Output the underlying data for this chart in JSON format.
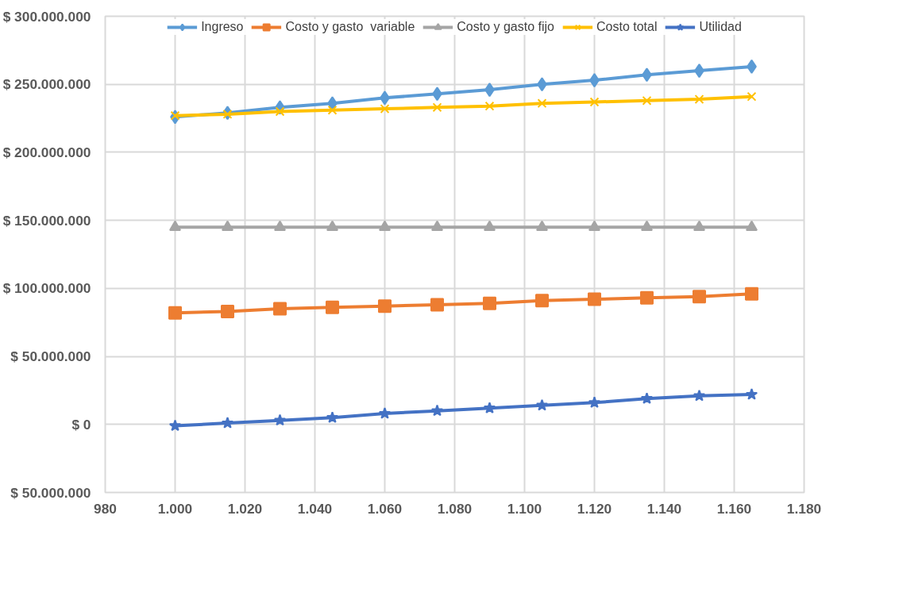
{
  "chart_data": {
    "type": "line",
    "x": [
      1000,
      1015,
      1030,
      1045,
      1060,
      1075,
      1090,
      1105,
      1120,
      1135,
      1150,
      1165
    ],
    "xlim": [
      980,
      1180
    ],
    "xticks": [
      {
        "value": 980,
        "label": "980"
      },
      {
        "value": 1000,
        "label": "1.000"
      },
      {
        "value": 1020,
        "label": "1.020"
      },
      {
        "value": 1040,
        "label": "1.040"
      },
      {
        "value": 1060,
        "label": "1.060"
      },
      {
        "value": 1080,
        "label": "1.080"
      },
      {
        "value": 1100,
        "label": "1.100"
      },
      {
        "value": 1120,
        "label": "1.120"
      },
      {
        "value": 1140,
        "label": "1.140"
      },
      {
        "value": 1160,
        "label": "1.160"
      },
      {
        "value": 1180,
        "label": "1.180"
      }
    ],
    "ylim": [
      -50000000,
      300000000
    ],
    "yticks": [
      {
        "value": -50000000,
        "label": "$ 50.000.000"
      },
      {
        "value": 0,
        "label": "$ 0"
      },
      {
        "value": 50000000,
        "label": "$ 50.000.000"
      },
      {
        "value": 100000000,
        "label": "$ 100.000.000"
      },
      {
        "value": 150000000,
        "label": "$ 150.000.000"
      },
      {
        "value": 200000000,
        "label": "$ 200.000.000"
      },
      {
        "value": 250000000,
        "label": "$ 250.000.000"
      },
      {
        "value": 300000000,
        "label": "$ 300.000.000"
      }
    ],
    "grid": true,
    "legend": "top",
    "line_style": "solid",
    "series": [
      {
        "name": "Ingreso",
        "color": "#5b9bd5",
        "marker": "diamond",
        "values": [
          226000000,
          229000000,
          233000000,
          236000000,
          240000000,
          243000000,
          246000000,
          250000000,
          253000000,
          257000000,
          260000000,
          263000000
        ]
      },
      {
        "name": "Costo y gasto  variable",
        "color": "#ed7d31",
        "marker": "square",
        "values": [
          82000000,
          83000000,
          85000000,
          86000000,
          87000000,
          88000000,
          89000000,
          91000000,
          92000000,
          93000000,
          94000000,
          96000000
        ]
      },
      {
        "name": "Costo y gasto fijo",
        "color": "#a5a5a5",
        "marker": "triangle",
        "values": [
          145000000,
          145000000,
          145000000,
          145000000,
          145000000,
          145000000,
          145000000,
          145000000,
          145000000,
          145000000,
          145000000,
          145000000
        ]
      },
      {
        "name": "Costo total",
        "color": "#ffc000",
        "marker": "cross",
        "values": [
          227000000,
          228000000,
          230000000,
          231000000,
          232000000,
          233000000,
          234000000,
          236000000,
          237000000,
          238000000,
          239000000,
          241000000
        ]
      },
      {
        "name": "Utilidad",
        "color": "#4472c4",
        "marker": "star",
        "values": [
          -1000000,
          1000000,
          3000000,
          5000000,
          8000000,
          10000000,
          12000000,
          14000000,
          16000000,
          19000000,
          21000000,
          22000000
        ]
      }
    ]
  }
}
